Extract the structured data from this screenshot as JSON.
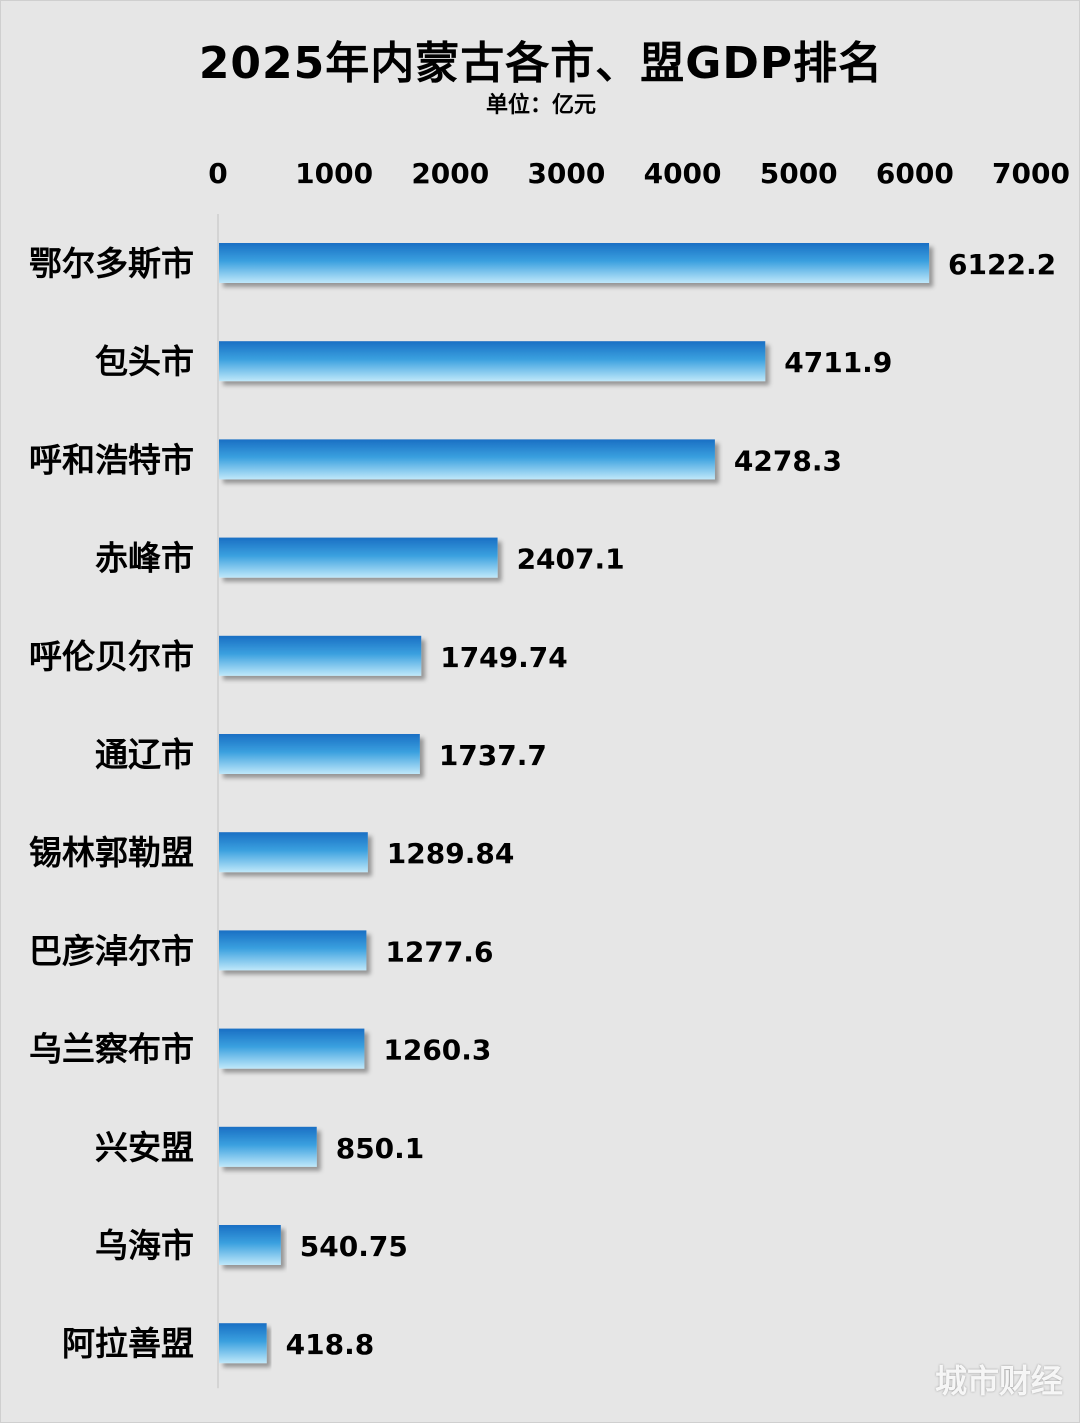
{
  "chart_data": {
    "type": "bar",
    "orientation": "horizontal",
    "title": "2025年内蒙古各市、盟GDP排名",
    "subtitle": "单位：亿元",
    "xlim": [
      0,
      7000
    ],
    "x_ticks": [
      "0",
      "1000",
      "2000",
      "3000",
      "4000",
      "5000",
      "6000",
      "7000"
    ],
    "x_tick_values": [
      0,
      1000,
      2000,
      3000,
      4000,
      5000,
      6000,
      7000
    ],
    "grid": false,
    "axis_position": "top",
    "categories": [
      "鄂尔多斯市",
      "包头市",
      "呼和浩特市",
      "赤峰市",
      "呼伦贝尔市",
      "通辽市",
      "锡林郭勒盟",
      "巴彦淖尔市",
      "乌兰察布市",
      "兴安盟",
      "乌海市",
      "阿拉善盟"
    ],
    "values": [
      6122.2,
      4711.9,
      4278.3,
      2407.1,
      1749.74,
      1737.7,
      1289.84,
      1277.6,
      1260.3,
      850.1,
      540.75,
      418.8
    ],
    "value_labels": [
      "6122.2",
      "4711.9",
      "4278.3",
      "2407.1",
      "1749.74",
      "1737.7",
      "1289.84",
      "1277.6",
      "1260.3",
      "850.1",
      "540.75",
      "418.8"
    ],
    "colors": {
      "bar_top": "#1a6fc4",
      "bar_bottom": "#bfe8fa",
      "background": "#e6e6e6"
    }
  },
  "watermark": "城市财经"
}
